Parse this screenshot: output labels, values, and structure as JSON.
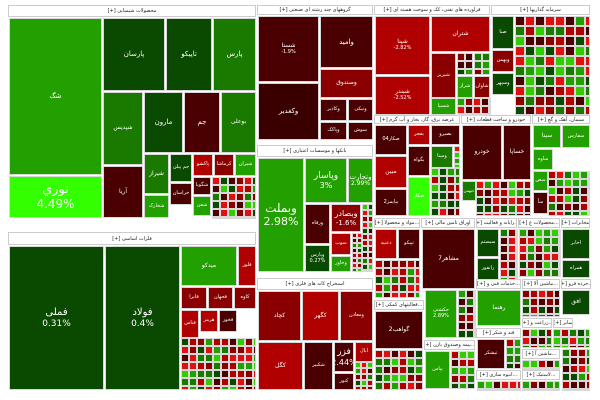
{
  "colors": {
    "dark_red": "#4a0000",
    "red": "#b00000",
    "bright_red": "#e01010",
    "dark_green": "#0a4a00",
    "green": "#1a7a00",
    "mid_green": "#22a000",
    "bright_green": "#33ff00"
  },
  "sectors": {
    "chemical": "محصولات شیمیایی [+]",
    "metals": "فلزات اساسی [+]",
    "multi": "گروههای چند رشته ای صنعتی [+]",
    "oil": "فراورده های نفتی، کک و سوخت هسته ای [+]",
    "invest": "سرمایه گذاریها [+]",
    "banks": "بانکها و موسسات اعتباری [+]",
    "mining": "استخراج کانه های فلزی [+]",
    "power": "عرضه برق، گاز، بخار و آب گرم [+]",
    "auto": "خودرو و ساخت قطعات [+]",
    "cement": "سیمان، آهک و گچ [+]",
    "nonmetal": "...مواد و محصولا [+]",
    "finance": "اوراق تامین مالی [+]",
    "computer": "...رایانه و فعالیت [+]",
    "food": "...محصولات غ [+]",
    "telecom": "مخابرات [+]",
    "transport": "...حمل ونقل، انبارداری [+]",
    "tech": "...خدمات فنی و [+]",
    "machinery": "...ماشین آلا [+]",
    "retail": "...خرده فرو [+]",
    "support": "...فعالیتهای کمکی [+]",
    "sugar": "قند و شکر [+]",
    "insurance": "...بیمه وصندوق بازن [+]",
    "construction": "...انبوه سازی [+]",
    "agri": "...زراعت و [+]",
    "other": "سایر [+]",
    "electrical": "...ماشین آ [+]",
    "rubber": "...لاستیک [+]"
  },
  "tiles": {
    "shag": {
      "label": "شگ"
    },
    "nouri": {
      "label": "نوري",
      "pct": "4.49%"
    },
    "parsan": {
      "label": "پارسان"
    },
    "tapiko": {
      "label": "تاپیکو"
    },
    "pars": {
      "label": "پارس"
    },
    "shepdis": {
      "label": "شپدیس"
    },
    "maroon": {
      "label": "مارون"
    },
    "jam": {
      "label": "جم"
    },
    "bouali": {
      "label": "بوعلی"
    },
    "arya": {
      "label": "آریا"
    },
    "shiraz": {
      "label": "شیراز"
    },
    "jampilen": {
      "label": "جم پیلن"
    },
    "pakshoo": {
      "label": "پاکشو"
    },
    "kermasha": {
      "label": "کرماشا"
    },
    "shiran": {
      "label": "شیران"
    },
    "shgooya": {
      "label": "شگویا"
    },
    "khorasan": {
      "label": "خراسان"
    },
    "shefan": {
      "label": "شفن"
    },
    "shakhark": {
      "label": "شخارک"
    },
    "famli": {
      "label": "فملی",
      "pct": "0.31%"
    },
    "foulad": {
      "label": "فولاد",
      "pct": "0.4%"
    },
    "midco": {
      "label": "میدکو"
    },
    "folouz": {
      "label": "فلوز"
    },
    "faraa": {
      "label": "فایرا"
    },
    "fjahan": {
      "label": "فجهان"
    },
    "kaveh": {
      "label": "کاوه"
    },
    "fanas": {
      "label": "فناس"
    },
    "hormoz": {
      "label": "هرمز"
    },
    "fkhooz": {
      "label": "فخوز"
    },
    "shasta": {
      "label": "شستا",
      "pct": "-1.9%"
    },
    "vaghadir": {
      "label": "وکغدیر"
    },
    "vamid": {
      "label": "وامید"
    },
    "vasandogh": {
      "label": "وصندوق"
    },
    "vakadir": {
      "label": "وکادیر"
    },
    "vniki": {
      "label": "ونیکی"
    },
    "vpakk": {
      "label": "وپاکک"
    },
    "soosh": {
      "label": "سوش"
    },
    "shepna": {
      "label": "شپنا",
      "pct": "-2.82%"
    },
    "shebandar": {
      "label": "شبندر",
      "pct": "-2.52%"
    },
    "shetran": {
      "label": "شتران"
    },
    "shebriz": {
      "label": "شبریز"
    },
    "sheraz": {
      "label": "شراز"
    },
    "shaavan": {
      "label": "شاوان"
    },
    "shespa": {
      "label": "شسپا"
    },
    "seba": {
      "label": "صبا"
    },
    "vbahman": {
      "label": "وبهمن"
    },
    "vsepehr": {
      "label": "وسپهر"
    },
    "vbemellat": {
      "label": "وبملت",
      "pct": "2.98%"
    },
    "vpasar": {
      "label": "وپاسار",
      "pct": "3%"
    },
    "vtejarat": {
      "label": "وتجارت",
      "pct": "2.99%"
    },
    "varfah": {
      "label": "ورفاه"
    },
    "vbsader": {
      "label": "وبصادر",
      "pct": "-1.6%"
    },
    "vpars": {
      "label": "وپارس",
      "pct": "0.27%"
    },
    "soob": {
      "label": "سوب"
    },
    "vkhavar": {
      "label": "وخاور"
    },
    "kechad": {
      "label": "کچاد"
    },
    "kegohar": {
      "label": "کگهر"
    },
    "vamaaden": {
      "label": "ومعادن"
    },
    "kegol": {
      "label": "کگل"
    },
    "shakbo": {
      "label": "شکبیر"
    },
    "fazar": {
      "label": "فزر",
      "pct": "2.44%"
    },
    "ebal": {
      "label": "ابال"
    },
    "kanor": {
      "label": "کنور"
    },
    "sakar04": {
      "label": "صکار04"
    },
    "mobin": {
      "label": "مبین"
    },
    "bpaymz2": {
      "label": "بپایمز2"
    },
    "bfajr": {
      "label": "بفجر"
    },
    "bgavah": {
      "label": "بگواه"
    },
    "sakar": {
      "label": "صکار"
    },
    "bsiro": {
      "label": "بصیرو"
    },
    "vmina": {
      "label": "ومینا"
    },
    "khodro": {
      "label": "خودرو"
    },
    "khsapa": {
      "label": "خساپا"
    },
    "khbahman": {
      "label": "خبهمن"
    },
    "sina": {
      "label": "سینا"
    },
    "sfars": {
      "label": "سفارس"
    },
    "saveh": {
      "label": "ساوه"
    },
    "sas": {
      "label": "سص"
    },
    "sabi": {
      "label": "سآ"
    },
    "dabid": {
      "label": "دعبید"
    },
    "tepiko": {
      "label": "تپیکو"
    },
    "mashahr7": {
      "label": "مشاهر7"
    },
    "sistem": {
      "label": "سیستم"
    },
    "ranfor": {
      "label": "رانفور"
    },
    "akhaber": {
      "label": "اخابر"
    },
    "hamrah": {
      "label": "همراه"
    },
    "hakashti": {
      "label": "حکشتی",
      "pct": "2.89%"
    },
    "gvahb2": {
      "label": "گواهب2"
    },
    "bpas": {
      "label": "بپاس"
    },
    "rahnama": {
      "label": "رهنما"
    },
    "tishkar": {
      "label": "تیشکر"
    },
    "ofogh": {
      "label": "افق"
    }
  }
}
